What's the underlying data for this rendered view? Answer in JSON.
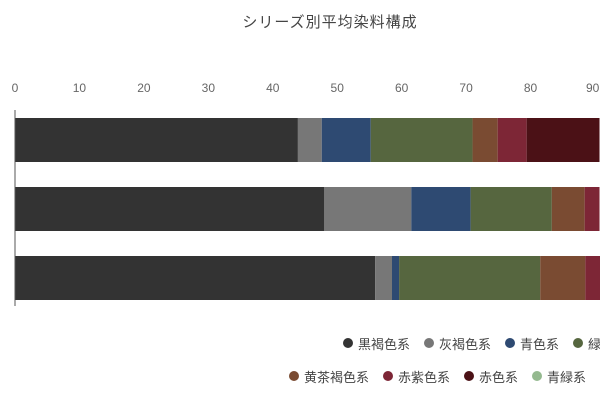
{
  "chart_data": {
    "type": "bar",
    "orientation": "horizontal",
    "stacked": true,
    "title": "シリーズ別平均染料構成",
    "xlim": [
      0,
      90
    ],
    "xticks": [
      0,
      10,
      20,
      30,
      40,
      50,
      60,
      70,
      80,
      90
    ],
    "grid": false,
    "legend_position": "bottom",
    "series": [
      {
        "name": "黒褐色系",
        "color": "#333333",
        "values": [
          43.9,
          48.0,
          55.9
        ]
      },
      {
        "name": "灰褐色系",
        "color": "#777777",
        "values": [
          3.7,
          13.5,
          2.6
        ]
      },
      {
        "name": "青色系",
        "color": "#2e4a72",
        "values": [
          7.6,
          9.2,
          1.1
        ]
      },
      {
        "name": "緑系",
        "color": "#56663f",
        "values": [
          15.8,
          12.6,
          21.9
        ]
      },
      {
        "name": "黄茶褐色系",
        "color": "#7a4b32",
        "values": [
          3.9,
          5.1,
          7.0
        ]
      },
      {
        "name": "赤紫色系",
        "color": "#7d2636",
        "values": [
          4.5,
          2.3,
          2.3
        ]
      },
      {
        "name": "赤色系",
        "color": "#4b1116",
        "values": [
          11.3,
          null,
          null
        ]
      },
      {
        "name": "青緑系",
        "color": "#94b98f",
        "values": [
          null,
          null,
          null
        ]
      }
    ]
  }
}
